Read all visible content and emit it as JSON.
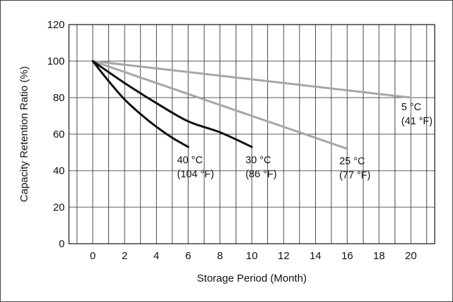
{
  "chart_data": {
    "type": "line",
    "xlabel": "Storage Period (Month)",
    "ylabel": "Capacity Retention Ratio (%)",
    "xlim": [
      -1.5,
      21.5
    ],
    "ylim": [
      0,
      120
    ],
    "x_ticks": [
      "0",
      "2",
      "4",
      "6",
      "8",
      "10",
      "12",
      "14",
      "16",
      "18",
      "20"
    ],
    "y_ticks": [
      "0",
      "20",
      "40",
      "60",
      "80",
      "100",
      "120"
    ],
    "grid": true,
    "series": [
      {
        "name": "40 °C",
        "label_line1": "40 °C",
        "label_line2": "(104 °F)",
        "color": "#111111",
        "x": [
          0,
          1,
          2,
          3,
          4,
          5,
          6
        ],
        "y": [
          100,
          89,
          79,
          71,
          64,
          58,
          53
        ],
        "label_at": [
          5.3,
          44
        ]
      },
      {
        "name": "30 °C",
        "label_line1": "30 °C",
        "label_line2": "(86 °F)",
        "color": "#111111",
        "x": [
          0,
          2,
          4,
          6,
          8,
          10
        ],
        "y": [
          100,
          88,
          77,
          67,
          61,
          53
        ],
        "label_at": [
          9.6,
          44
        ]
      },
      {
        "name": "25 °C",
        "label_line1": "25 °C",
        "label_line2": "(77 °F)",
        "color": "#a6a6a6",
        "x": [
          0,
          16
        ],
        "y": [
          100,
          52
        ],
        "label_at": [
          15.5,
          43.5
        ]
      },
      {
        "name": "5 °C",
        "label_line1": "5 °C",
        "label_line2": "(41 °F)",
        "color": "#a6a6a6",
        "x": [
          0,
          20
        ],
        "y": [
          100,
          80
        ],
        "label_at": [
          19.4,
          73
        ]
      }
    ]
  }
}
